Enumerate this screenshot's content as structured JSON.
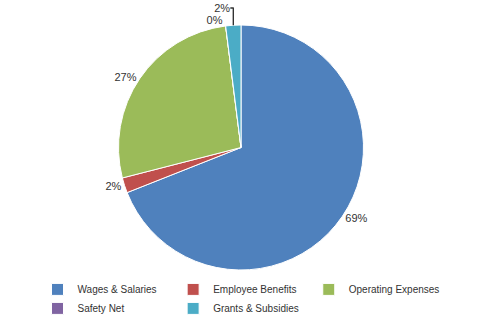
{
  "chart_data": {
    "type": "pie",
    "categories": [
      "Wages & Salaries",
      "Employee Benefits",
      "Operating Expenses",
      "Safety Net",
      "Grants & Subsidies"
    ],
    "values": [
      69,
      2,
      27,
      0,
      2
    ],
    "value_labels": [
      "69%",
      "2%",
      "27%",
      "0%",
      "2%"
    ],
    "colors": [
      "#4f81bd",
      "#c0504d",
      "#9bbb59",
      "#8064a2",
      "#4bacc6"
    ],
    "data_labels": true,
    "legend": "bottom"
  }
}
